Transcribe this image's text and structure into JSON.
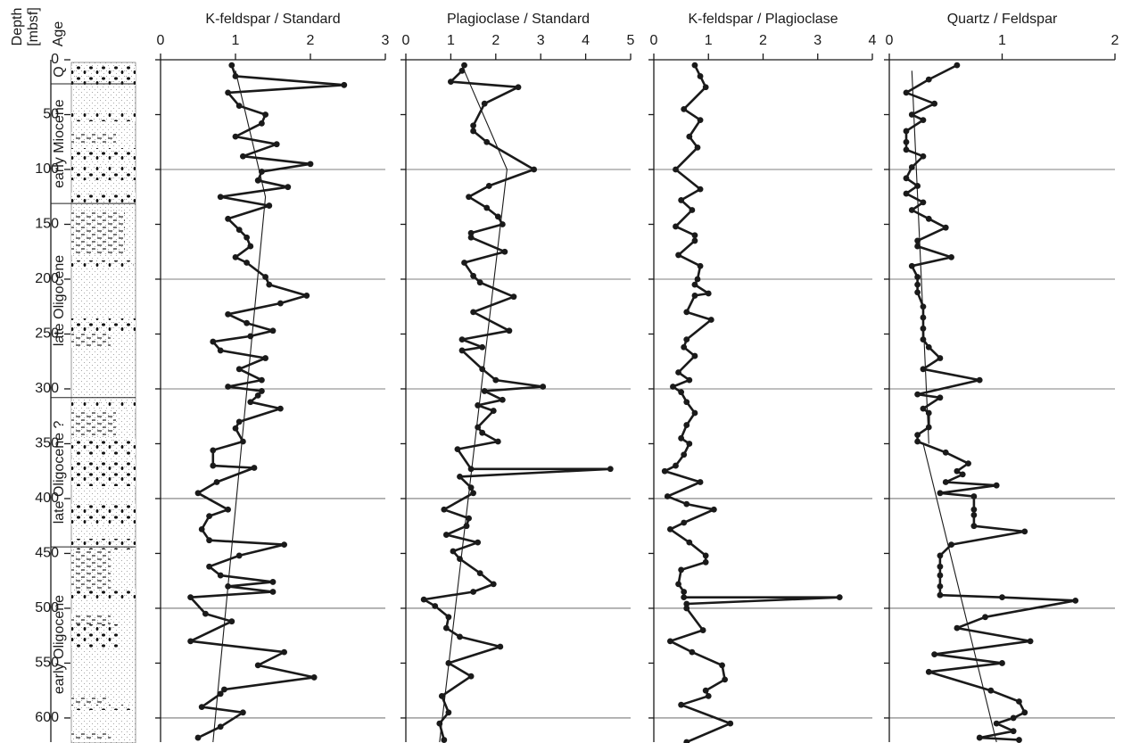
{
  "depth_axis": {
    "label_lines": [
      "Depth",
      "[mbsf]"
    ],
    "ylim": [
      0,
      622
    ],
    "yticks": [
      0,
      50,
      100,
      150,
      200,
      250,
      300,
      350,
      400,
      450,
      500,
      550,
      600
    ],
    "grid": [
      100,
      200,
      300,
      400,
      500,
      600
    ]
  },
  "age_column": {
    "title": "Age",
    "units": [
      {
        "label": "Q",
        "top": 0,
        "bottom": 22
      },
      {
        "label": "early Miocene",
        "top": 22,
        "bottom": 131
      },
      {
        "label": "late Oligocene",
        "top": 131,
        "bottom": 308
      },
      {
        "label": "late Oligocene ?",
        "top": 308,
        "bottom": 444
      },
      {
        "label": "early Oligocene",
        "top": 444,
        "bottom": 622
      }
    ]
  },
  "chart_data": [
    {
      "type": "line",
      "title": "K-feldspar / Standard",
      "xlim": [
        0,
        3
      ],
      "xticks": [
        0,
        1,
        2,
        3
      ],
      "color": "#1a1a1a",
      "series": [
        {
          "depth": [
            5,
            15,
            23,
            30,
            42,
            50,
            58,
            70,
            77,
            88,
            95,
            102,
            110,
            116,
            125,
            133,
            145,
            155,
            162,
            170,
            180,
            185,
            198,
            205,
            215,
            222,
            232,
            240,
            247,
            252,
            257,
            265,
            272,
            282,
            292,
            298,
            302,
            306,
            312,
            318,
            330,
            336,
            348,
            356,
            370,
            372,
            385,
            395,
            410,
            416,
            428,
            438,
            442,
            452,
            462,
            470,
            476,
            480,
            485,
            490,
            505,
            512,
            530,
            540,
            552,
            563,
            574,
            578,
            590,
            595,
            608,
            618
          ],
          "values": [
            0.95,
            1.0,
            2.45,
            0.9,
            1.05,
            1.4,
            1.35,
            1.0,
            1.55,
            1.1,
            2.0,
            1.35,
            1.3,
            1.7,
            0.8,
            1.45,
            0.9,
            1.05,
            1.15,
            1.2,
            1.0,
            1.15,
            1.4,
            1.45,
            1.95,
            1.6,
            0.9,
            1.15,
            1.5,
            1.2,
            0.7,
            0.8,
            1.4,
            1.05,
            1.35,
            0.9,
            1.35,
            1.3,
            1.2,
            1.6,
            1.05,
            1.0,
            1.1,
            0.7,
            0.7,
            1.25,
            0.75,
            0.5,
            0.9,
            0.65,
            0.55,
            0.65,
            1.65,
            1.05,
            0.65,
            0.8,
            1.5,
            0.9,
            1.5,
            0.4,
            0.6,
            0.95,
            0.4,
            1.65,
            1.3,
            2.05,
            0.85,
            0.8,
            0.55,
            1.1,
            0.8,
            0.5
          ]
        }
      ],
      "trend": {
        "depth": [
          10,
          125,
          622
        ],
        "values": [
          1.0,
          1.4,
          0.7
        ]
      }
    },
    {
      "type": "line",
      "title": "Plagioclase / Standard",
      "xlim": [
        0,
        5
      ],
      "xticks": [
        0,
        1,
        2,
        3,
        4,
        5
      ],
      "color": "#1a1a1a",
      "series": [
        {
          "depth": [
            5,
            10,
            20,
            25,
            40,
            60,
            65,
            75,
            100,
            115,
            125,
            135,
            143,
            150,
            158,
            162,
            175,
            185,
            197,
            203,
            216,
            230,
            247,
            255,
            262,
            265,
            282,
            292,
            298,
            302,
            310,
            315,
            320,
            335,
            340,
            348,
            355,
            373,
            373,
            380,
            390,
            395,
            410,
            418,
            425,
            433,
            440,
            448,
            455,
            468,
            478,
            485,
            492,
            498,
            508,
            518,
            526,
            535,
            550,
            562,
            580,
            595,
            605,
            620
          ],
          "values": [
            1.3,
            1.25,
            1.0,
            2.5,
            1.75,
            1.5,
            1.5,
            1.8,
            2.85,
            1.85,
            1.4,
            1.8,
            2.05,
            2.15,
            1.45,
            1.45,
            2.2,
            1.3,
            1.5,
            1.65,
            2.4,
            1.5,
            2.3,
            1.25,
            1.7,
            1.25,
            1.7,
            2.0,
            3.05,
            1.75,
            2.15,
            1.6,
            1.95,
            1.6,
            1.7,
            2.05,
            1.15,
            1.45,
            4.55,
            1.2,
            1.45,
            1.5,
            0.85,
            1.4,
            1.35,
            0.9,
            1.6,
            1.05,
            1.2,
            1.65,
            1.95,
            1.5,
            0.4,
            0.65,
            0.95,
            0.9,
            1.2,
            2.1,
            0.95,
            1.45,
            0.8,
            0.95,
            0.75,
            0.85
          ]
        }
      ],
      "trend": {
        "depth": [
          10,
          100,
          622
        ],
        "values": [
          1.3,
          2.25,
          0.75
        ]
      }
    },
    {
      "type": "line",
      "title": "K-feldspar / Plagioclase",
      "xlim": [
        0,
        4
      ],
      "xticks": [
        0,
        1,
        2,
        3,
        4
      ],
      "color": "#1a1a1a",
      "series": [
        {
          "depth": [
            5,
            15,
            25,
            45,
            55,
            70,
            80,
            100,
            118,
            128,
            137,
            152,
            160,
            165,
            178,
            188,
            200,
            205,
            213,
            215,
            230,
            237,
            255,
            262,
            270,
            285,
            292,
            298,
            303,
            312,
            322,
            333,
            345,
            350,
            360,
            370,
            375,
            385,
            398,
            405,
            410,
            422,
            428,
            440,
            452,
            458,
            465,
            478,
            485,
            490,
            490,
            496,
            500,
            520,
            530,
            540,
            552,
            565,
            575,
            580,
            588,
            605,
            622
          ],
          "values": [
            0.75,
            0.85,
            0.95,
            0.55,
            0.85,
            0.65,
            0.8,
            0.4,
            0.85,
            0.5,
            0.7,
            0.4,
            0.75,
            0.75,
            0.45,
            0.85,
            0.8,
            0.75,
            1.0,
            0.75,
            0.6,
            1.05,
            0.6,
            0.55,
            0.75,
            0.45,
            0.65,
            0.35,
            0.5,
            0.6,
            0.75,
            0.6,
            0.5,
            0.65,
            0.55,
            0.4,
            0.2,
            0.85,
            0.25,
            0.6,
            1.1,
            0.55,
            0.3,
            0.65,
            0.95,
            0.95,
            0.5,
            0.45,
            0.55,
            0.55,
            3.4,
            0.6,
            0.6,
            0.9,
            0.3,
            0.7,
            1.25,
            1.3,
            0.95,
            1.0,
            0.5,
            1.4,
            0.6
          ]
        }
      ]
    },
    {
      "type": "line",
      "title": "Quartz / Feldspar",
      "xlim": [
        0,
        2
      ],
      "xticks": [
        0,
        1,
        2
      ],
      "color": "#1a1a1a",
      "series": [
        {
          "depth": [
            5,
            18,
            30,
            40,
            50,
            55,
            65,
            75,
            82,
            88,
            98,
            108,
            115,
            122,
            130,
            137,
            145,
            153,
            165,
            170,
            180,
            188,
            198,
            205,
            212,
            225,
            235,
            245,
            255,
            262,
            272,
            282,
            292,
            305,
            308,
            318,
            322,
            335,
            342,
            348,
            358,
            368,
            375,
            378,
            385,
            388,
            395,
            398,
            410,
            415,
            425,
            430,
            442,
            452,
            462,
            470,
            480,
            488,
            490,
            493,
            508,
            518,
            530,
            542,
            550,
            558,
            575,
            585,
            595,
            600,
            605,
            612,
            618,
            620
          ],
          "values": [
            0.6,
            0.35,
            0.15,
            0.4,
            0.2,
            0.3,
            0.15,
            0.15,
            0.15,
            0.3,
            0.2,
            0.15,
            0.25,
            0.15,
            0.3,
            0.2,
            0.35,
            0.5,
            0.25,
            0.25,
            0.55,
            0.2,
            0.25,
            0.25,
            0.25,
            0.3,
            0.3,
            0.3,
            0.3,
            0.35,
            0.45,
            0.3,
            0.8,
            0.25,
            0.45,
            0.3,
            0.35,
            0.35,
            0.25,
            0.25,
            0.5,
            0.7,
            0.6,
            0.65,
            0.5,
            0.95,
            0.45,
            0.75,
            0.75,
            0.75,
            0.75,
            1.2,
            0.55,
            0.45,
            0.45,
            0.45,
            0.45,
            0.45,
            1.0,
            1.65,
            0.85,
            0.6,
            1.25,
            0.4,
            1.0,
            0.35,
            0.9,
            1.15,
            1.2,
            1.1,
            0.95,
            1.1,
            0.8,
            1.15
          ]
        }
      ],
      "trend": {
        "depth": [
          10,
          350,
          null,
          350,
          622
        ],
        "values": [
          0.2,
          0.35,
          null,
          0.3,
          0.95
        ]
      }
    }
  ]
}
